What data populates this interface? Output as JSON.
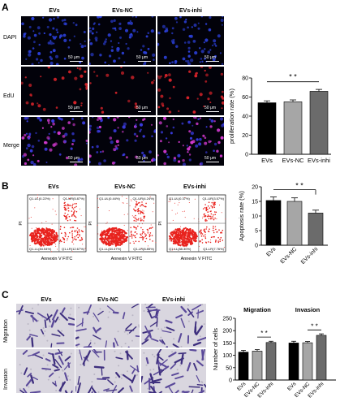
{
  "panelA": {
    "letter": "A",
    "columns": [
      "EVs",
      "EVs-NC",
      "EVs-inhi"
    ],
    "rows": [
      "DAPI",
      "EdU",
      "Merge"
    ],
    "scale_text": "50 μm",
    "chart_data": {
      "type": "bar",
      "categories": [
        "EVs",
        "EVs-NC",
        "EVs-inhi"
      ],
      "values": [
        54,
        55,
        66
      ],
      "errors": [
        2,
        2,
        2
      ],
      "colors": [
        "#000000",
        "#a6a6a6",
        "#6b6b6b"
      ],
      "ylabel": "proliferation rate (%)",
      "ylim": [
        0,
        80
      ],
      "yticks": [
        0,
        20,
        40,
        60,
        80
      ],
      "significance": {
        "label": "* *",
        "from": 0,
        "to": 2
      }
    }
  },
  "panelB": {
    "letter": "B",
    "columns": [
      "EVs",
      "EVs-NC",
      "EVs-inhi"
    ],
    "xaxis_label": "Annexin V FITC",
    "yaxis_label": "PI",
    "quadrants": [
      {
        "ul": "Q1-UL(0.22%)",
        "ur": "Q1-UR(5.87%)",
        "ll": "Q1-LL(84.54%)",
        "lr": "Q1-LR(12.67%)"
      },
      {
        "ul": "Q1-UL(0.44%)",
        "ur": "Q1-UR(4.24%)",
        "ll": "Q1-LL(84.47%)",
        "lr": "Q1-LR(8.85%)"
      },
      {
        "ul": "Q1-UL(0.37%)",
        "ur": "Q1-UR(3.57%)",
        "ll": "Q1-LL(88.30%)",
        "lr": "Q1-LR(7.76%)"
      }
    ],
    "chart_data": {
      "type": "bar",
      "categories": [
        "EVs",
        "EVs-NC",
        "EVs-inhi"
      ],
      "values": [
        15.3,
        15.0,
        11.0
      ],
      "errors": [
        1.2,
        1.2,
        1.0
      ],
      "colors": [
        "#000000",
        "#a6a6a6",
        "#6b6b6b"
      ],
      "ylabel": "Apoptosis rate (%)",
      "ylim": [
        0,
        20
      ],
      "yticks": [
        0,
        5,
        10,
        15,
        20
      ],
      "significance": {
        "label": "* *",
        "from": 0,
        "to": 2
      }
    }
  },
  "panelC": {
    "letter": "C",
    "columns": [
      "EVs",
      "EVs-NC",
      "EVs-inhi"
    ],
    "rows": [
      "Migration",
      "Invasion"
    ],
    "chart_data": {
      "type": "bar",
      "groups": [
        "Migration",
        "Invasion"
      ],
      "categories": [
        "EVs",
        "EVs-NC",
        "EVs-inhi"
      ],
      "series": [
        {
          "name": "Migration",
          "values": [
            113,
            117,
            152
          ],
          "errors": [
            7,
            6,
            5
          ]
        },
        {
          "name": "Invasion",
          "values": [
            150,
            151,
            181
          ],
          "errors": [
            7,
            5,
            6
          ]
        }
      ],
      "colors": [
        "#000000",
        "#a6a6a6",
        "#6b6b6b"
      ],
      "ylabel": "Number of cells",
      "ylim": [
        0,
        250
      ],
      "yticks": [
        0,
        50,
        100,
        150,
        200,
        250
      ],
      "significance": {
        "label": "* *"
      }
    }
  }
}
